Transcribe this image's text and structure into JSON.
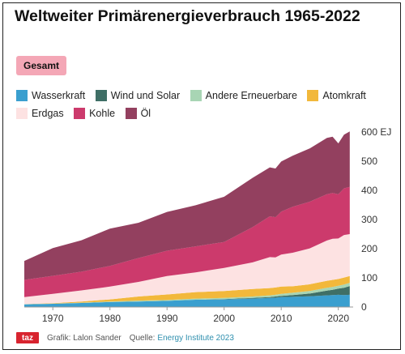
{
  "title": "Weltweiter Primärenergieverbrauch 1965-2022",
  "badge": "Gesamt",
  "footer": {
    "logo": "taz",
    "credit": "Grafik: Lalon Sander",
    "source_label": "Quelle:",
    "source": "Energy Institute 2023"
  },
  "chart_data": {
    "type": "area",
    "stacked": true,
    "x": [
      1965,
      1970,
      1975,
      1980,
      1985,
      1990,
      1995,
      2000,
      2005,
      2008,
      2009,
      2010,
      2012,
      2015,
      2018,
      2019,
      2020,
      2021,
      2022
    ],
    "x_ticks": [
      "1970",
      "1980",
      "1990",
      "2000",
      "2010",
      "2020"
    ],
    "y_ticks": [
      "0",
      "100",
      "200",
      "300",
      "400",
      "500",
      "600 EJ"
    ],
    "ylim": [
      0,
      600
    ],
    "ylabel_unit": "EJ",
    "grid": false,
    "legend_position": "top",
    "series": [
      {
        "name": "Wasserkraft",
        "color": "#3a9fcf",
        "values": [
          9,
          11,
          14,
          17,
          19,
          21,
          25,
          26,
          29,
          31,
          32,
          34,
          35,
          37,
          40,
          41,
          42,
          41,
          42
        ]
      },
      {
        "name": "Wind und Solar",
        "color": "#3f6f66",
        "values": [
          0,
          0,
          0,
          0,
          0,
          0,
          0,
          1,
          2,
          3,
          4,
          4,
          6,
          9,
          16,
          18,
          21,
          25,
          30
        ]
      },
      {
        "name": "Andere Erneuerbare",
        "color": "#a8d5b4",
        "values": [
          1,
          1,
          1,
          2,
          3,
          3,
          4,
          4,
          5,
          6,
          6,
          7,
          8,
          9,
          10,
          10,
          10,
          11,
          11
        ]
      },
      {
        "name": "Atomkraft",
        "color": "#f2b83b",
        "values": [
          0,
          1,
          4,
          7,
          14,
          19,
          22,
          24,
          26,
          25,
          25,
          25,
          22,
          23,
          24,
          24,
          23,
          24,
          23
        ]
      },
      {
        "name": "Erdgas",
        "color": "#fde2e2",
        "values": [
          24,
          32,
          38,
          44,
          50,
          63,
          68,
          79,
          91,
          106,
          103,
          110,
          115,
          123,
          138,
          141,
          139,
          146,
          144
        ]
      },
      {
        "name": "Kohle",
        "color": "#cc3a6c",
        "values": [
          59,
          62,
          64,
          71,
          82,
          87,
          89,
          89,
          121,
          140,
          138,
          147,
          158,
          160,
          159,
          157,
          152,
          160,
          162
        ]
      },
      {
        "name": "Öl",
        "color": "#93405f",
        "values": [
          65,
          95,
          108,
          128,
          121,
          133,
          141,
          155,
          169,
          168,
          167,
          172,
          175,
          183,
          193,
          193,
          174,
          184,
          190
        ]
      }
    ]
  }
}
